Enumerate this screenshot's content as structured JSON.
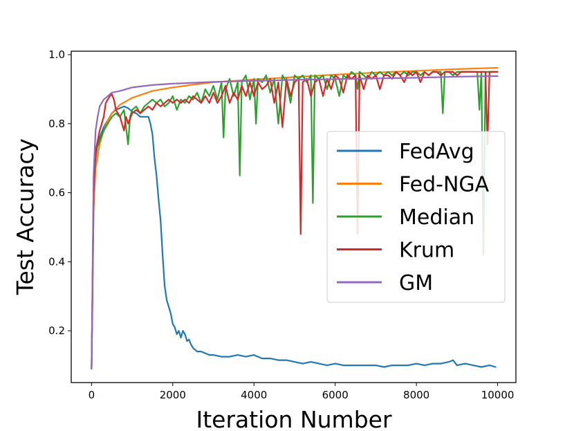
{
  "chart_data": {
    "type": "line",
    "title": "",
    "xlabel": "Iteration Number",
    "ylabel": "Test Accuracy",
    "xlim": [
      -500,
      10450
    ],
    "ylim": [
      0.05,
      1.01
    ],
    "xticks": [
      0,
      2000,
      4000,
      6000,
      8000,
      10000
    ],
    "xtick_labels": [
      "0",
      "2000",
      "4000",
      "6000",
      "8000",
      "10000"
    ],
    "yticks": [
      0.2,
      0.4,
      0.6,
      0.8,
      1.0
    ],
    "ytick_labels": [
      "0.2",
      "0.4",
      "0.6",
      "0.8",
      "1.0"
    ],
    "grid": false,
    "legend_position": "center-right",
    "series": [
      {
        "name": "FedAvg",
        "color": "#1f77b4",
        "x": [
          0,
          50,
          100,
          150,
          200,
          300,
          400,
          500,
          600,
          700,
          800,
          900,
          1000,
          1100,
          1200,
          1300,
          1400,
          1450,
          1500,
          1550,
          1600,
          1650,
          1700,
          1750,
          1800,
          1850,
          1900,
          1950,
          2000,
          2050,
          2100,
          2150,
          2200,
          2250,
          2300,
          2350,
          2400,
          2450,
          2500,
          2600,
          2700,
          2800,
          2900,
          3000,
          3200,
          3400,
          3600,
          3800,
          4000,
          4200,
          4400,
          4600,
          4800,
          5000,
          5200,
          5400,
          5600,
          5800,
          6000,
          6200,
          6400,
          6600,
          6800,
          7000,
          7200,
          7400,
          7600,
          7800,
          8000,
          8200,
          8400,
          8600,
          8800,
          8900,
          9000,
          9200,
          9400,
          9600,
          9800,
          9950
        ],
        "y": [
          0.09,
          0.55,
          0.7,
          0.74,
          0.76,
          0.79,
          0.81,
          0.83,
          0.84,
          0.845,
          0.85,
          0.845,
          0.835,
          0.83,
          0.82,
          0.82,
          0.82,
          0.8,
          0.77,
          0.7,
          0.65,
          0.58,
          0.52,
          0.42,
          0.33,
          0.29,
          0.27,
          0.25,
          0.22,
          0.21,
          0.19,
          0.2,
          0.18,
          0.2,
          0.19,
          0.17,
          0.175,
          0.16,
          0.15,
          0.14,
          0.14,
          0.135,
          0.13,
          0.13,
          0.125,
          0.125,
          0.13,
          0.125,
          0.13,
          0.12,
          0.12,
          0.115,
          0.115,
          0.11,
          0.105,
          0.11,
          0.105,
          0.1,
          0.105,
          0.1,
          0.1,
          0.1,
          0.1,
          0.1,
          0.095,
          0.1,
          0.1,
          0.1,
          0.105,
          0.1,
          0.105,
          0.105,
          0.11,
          0.115,
          0.1,
          0.105,
          0.1,
          0.095,
          0.1,
          0.095
        ]
      },
      {
        "name": "Fed-NGA",
        "color": "#ff7f0e",
        "x": [
          0,
          50,
          100,
          200,
          300,
          400,
          500,
          700,
          1000,
          1500,
          2000,
          2500,
          3000,
          4000,
          5000,
          6000,
          7000,
          8000,
          9000,
          10000
        ],
        "y": [
          0.09,
          0.55,
          0.67,
          0.74,
          0.78,
          0.81,
          0.83,
          0.855,
          0.875,
          0.895,
          0.905,
          0.913,
          0.92,
          0.928,
          0.935,
          0.942,
          0.948,
          0.953,
          0.958,
          0.962
        ]
      },
      {
        "name": "Median",
        "color": "#2ca02c",
        "x": [
          0,
          50,
          100,
          200,
          300,
          400,
          500,
          600,
          700,
          800,
          900,
          950,
          1000,
          1100,
          1200,
          1300,
          1400,
          1500,
          1600,
          1700,
          1800,
          1900,
          2000,
          2100,
          2200,
          2300,
          2400,
          2500,
          2600,
          2700,
          2800,
          2900,
          3000,
          3100,
          3200,
          3250,
          3300,
          3400,
          3500,
          3600,
          3650,
          3700,
          3800,
          3900,
          4000,
          4050,
          4100,
          4200,
          4300,
          4400,
          4500,
          4600,
          4700,
          4800,
          4900,
          5000,
          5100,
          5200,
          5300,
          5400,
          5450,
          5500,
          5600,
          5700,
          5800,
          5900,
          6000,
          6100,
          6200,
          6300,
          6400,
          6500,
          6550,
          6600,
          6700,
          6800,
          6900,
          7000,
          7100,
          7200,
          7300,
          7400,
          7500,
          7600,
          7700,
          7800,
          7900,
          8000,
          8100,
          8200,
          8300,
          8400,
          8500,
          8600,
          8650,
          8700,
          8800,
          8900,
          9000,
          9100,
          9200,
          9300,
          9400,
          9500,
          9550,
          9600,
          9650,
          9700,
          9800,
          9900,
          10000
        ],
        "y": [
          0.09,
          0.6,
          0.72,
          0.75,
          0.78,
          0.8,
          0.82,
          0.83,
          0.82,
          0.84,
          0.74,
          0.82,
          0.84,
          0.85,
          0.83,
          0.85,
          0.86,
          0.87,
          0.86,
          0.87,
          0.85,
          0.86,
          0.88,
          0.84,
          0.87,
          0.86,
          0.88,
          0.87,
          0.89,
          0.86,
          0.9,
          0.88,
          0.91,
          0.87,
          0.92,
          0.76,
          0.9,
          0.93,
          0.88,
          0.92,
          0.65,
          0.92,
          0.94,
          0.87,
          0.93,
          0.8,
          0.93,
          0.92,
          0.94,
          0.89,
          0.93,
          0.8,
          0.94,
          0.92,
          0.86,
          0.94,
          0.93,
          0.94,
          0.92,
          0.94,
          0.57,
          0.94,
          0.93,
          0.94,
          0.9,
          0.94,
          0.93,
          0.88,
          0.94,
          0.93,
          0.95,
          0.94,
          0.9,
          0.95,
          0.94,
          0.93,
          0.95,
          0.94,
          0.95,
          0.94,
          0.95,
          0.94,
          0.95,
          0.94,
          0.95,
          0.94,
          0.95,
          0.95,
          0.94,
          0.95,
          0.94,
          0.95,
          0.95,
          0.95,
          0.83,
          0.95,
          0.95,
          0.94,
          0.95,
          0.95,
          0.95,
          0.95,
          0.95,
          0.95,
          0.84,
          0.95,
          0.42,
          0.95,
          0.95,
          0.95,
          0.95
        ]
      },
      {
        "name": "Krum",
        "color": "#d62728",
        "x": [
          0,
          50,
          100,
          200,
          300,
          350,
          400,
          450,
          500,
          550,
          600,
          700,
          800,
          850,
          900,
          1000,
          1100,
          1200,
          1300,
          1400,
          1500,
          1600,
          1700,
          1800,
          1900,
          2000,
          2100,
          2200,
          2300,
          2400,
          2500,
          2600,
          2700,
          2800,
          2900,
          3000,
          3100,
          3200,
          3300,
          3400,
          3500,
          3600,
          3700,
          3800,
          3900,
          4000,
          4100,
          4200,
          4300,
          4400,
          4500,
          4600,
          4700,
          4800,
          4900,
          5000,
          5100,
          5150,
          5200,
          5300,
          5400,
          5500,
          5600,
          5700,
          5800,
          5900,
          6000,
          6100,
          6200,
          6300,
          6400,
          6500,
          6550,
          6600,
          6700,
          6800,
          6900,
          7000,
          7100,
          7200,
          7300,
          7400,
          7500,
          7600,
          7700,
          7800,
          7900,
          8000,
          8100,
          8200,
          8300,
          8400,
          8500,
          8600,
          8700,
          8800,
          8900,
          9000,
          9100,
          9200,
          9300,
          9400,
          9500,
          9600,
          9700,
          9750,
          9800,
          9900,
          10000
        ],
        "y": [
          0.09,
          0.6,
          0.72,
          0.78,
          0.82,
          0.86,
          0.87,
          0.88,
          0.885,
          0.87,
          0.84,
          0.82,
          0.78,
          0.82,
          0.8,
          0.83,
          0.84,
          0.83,
          0.84,
          0.85,
          0.84,
          0.86,
          0.85,
          0.86,
          0.87,
          0.86,
          0.87,
          0.86,
          0.87,
          0.86,
          0.88,
          0.87,
          0.86,
          0.88,
          0.86,
          0.89,
          0.86,
          0.88,
          0.91,
          0.86,
          0.89,
          0.87,
          0.91,
          0.88,
          0.92,
          0.88,
          0.92,
          0.9,
          0.91,
          0.93,
          0.86,
          0.92,
          0.79,
          0.93,
          0.88,
          0.92,
          0.93,
          0.48,
          0.92,
          0.93,
          0.88,
          0.92,
          0.93,
          0.88,
          0.93,
          0.9,
          0.94,
          0.93,
          0.89,
          0.94,
          0.93,
          0.94,
          0.48,
          0.94,
          0.9,
          0.94,
          0.93,
          0.94,
          0.9,
          0.94,
          0.94,
          0.93,
          0.95,
          0.94,
          0.92,
          0.95,
          0.94,
          0.95,
          0.92,
          0.95,
          0.94,
          0.95,
          0.95,
          0.94,
          0.95,
          0.95,
          0.95,
          0.94,
          0.95,
          0.95,
          0.95,
          0.95,
          0.95,
          0.95,
          0.95,
          0.74,
          0.95,
          0.95,
          0.95
        ]
      },
      {
        "name": "GM",
        "color": "#9467bd",
        "x": [
          0,
          50,
          100,
          150,
          200,
          250,
          300,
          400,
          500,
          700,
          1000,
          1500,
          2000,
          3000,
          4000,
          5000,
          6000,
          7000,
          8000,
          9000,
          10000
        ],
        "y": [
          0.09,
          0.65,
          0.78,
          0.82,
          0.85,
          0.86,
          0.87,
          0.88,
          0.89,
          0.895,
          0.905,
          0.912,
          0.916,
          0.921,
          0.924,
          0.927,
          0.929,
          0.931,
          0.933,
          0.936,
          0.938
        ]
      }
    ]
  }
}
